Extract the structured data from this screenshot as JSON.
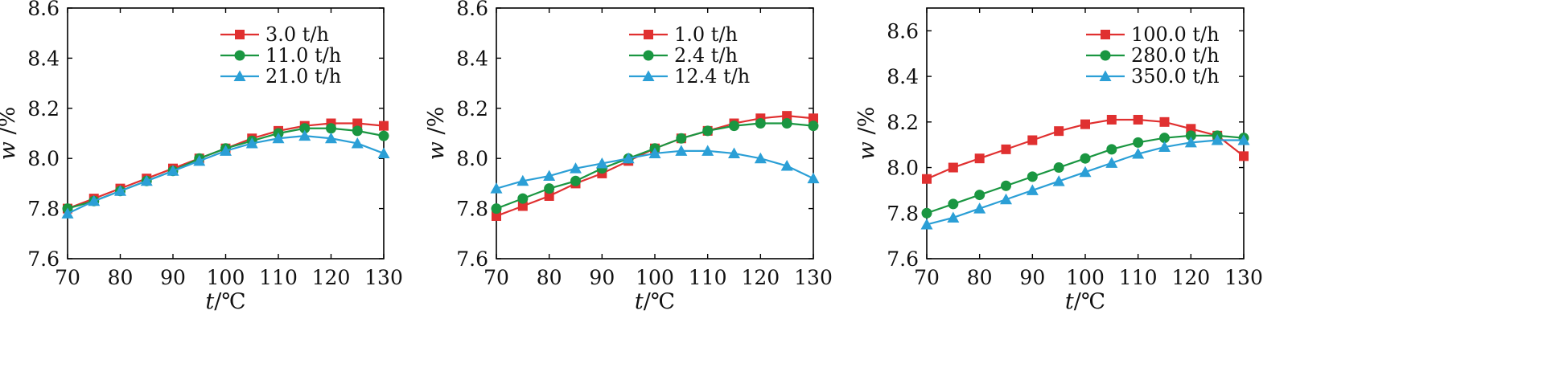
{
  "chart_data": [
    {
      "type": "line",
      "x": [
        70,
        75,
        80,
        85,
        90,
        95,
        100,
        105,
        110,
        115,
        120,
        125,
        130
      ],
      "xlabel": {
        "italic": "t",
        "unit": "/℃"
      },
      "ylabel": {
        "italic": "w",
        "unit": "/%"
      },
      "xlim": [
        70,
        130
      ],
      "ylim": [
        7.6,
        8.6
      ],
      "xticks": [
        "70",
        "80",
        "90",
        "100",
        "110",
        "120",
        "130"
      ],
      "yticks": [
        "7.6",
        "7.8",
        "8.0",
        "8.2",
        "8.4",
        "8.6"
      ],
      "grid": false,
      "legend": "top-center",
      "series": [
        {
          "name": "3.0 t/h",
          "color": "#e03030",
          "marker": "square",
          "values": [
            7.8,
            7.84,
            7.88,
            7.92,
            7.96,
            8.0,
            8.04,
            8.08,
            8.11,
            8.13,
            8.14,
            8.14,
            8.13
          ]
        },
        {
          "name": "11.0 t/h",
          "color": "#1a9641",
          "marker": "circle",
          "values": [
            7.8,
            7.83,
            7.87,
            7.91,
            7.95,
            8.0,
            8.04,
            8.07,
            8.1,
            8.12,
            8.12,
            8.11,
            8.09
          ]
        },
        {
          "name": "21.0 t/h",
          "color": "#2b9fd6",
          "marker": "triangle",
          "values": [
            7.78,
            7.83,
            7.87,
            7.91,
            7.95,
            7.99,
            8.03,
            8.06,
            8.08,
            8.09,
            8.08,
            8.06,
            8.02
          ]
        }
      ]
    },
    {
      "type": "line",
      "x": [
        70,
        75,
        80,
        85,
        90,
        95,
        100,
        105,
        110,
        115,
        120,
        125,
        130
      ],
      "xlabel": {
        "italic": "t",
        "unit": "/℃"
      },
      "ylabel": {
        "italic": "w",
        "unit": "/%"
      },
      "xlim": [
        70,
        130
      ],
      "ylim": [
        7.6,
        8.6
      ],
      "xticks": [
        "70",
        "80",
        "90",
        "100",
        "110",
        "120",
        "130"
      ],
      "yticks": [
        "7.6",
        "7.8",
        "8.0",
        "8.2",
        "8.4",
        "8.6"
      ],
      "grid": false,
      "legend": "top-center",
      "series": [
        {
          "name": "1.0 t/h",
          "color": "#e03030",
          "marker": "square",
          "values": [
            7.77,
            7.81,
            7.85,
            7.9,
            7.94,
            7.99,
            8.04,
            8.08,
            8.11,
            8.14,
            8.16,
            8.17,
            8.16
          ]
        },
        {
          "name": "2.4 t/h",
          "color": "#1a9641",
          "marker": "circle",
          "values": [
            7.8,
            7.84,
            7.88,
            7.91,
            7.96,
            8.0,
            8.04,
            8.08,
            8.11,
            8.13,
            8.14,
            8.14,
            8.13
          ]
        },
        {
          "name": "12.4 t/h",
          "color": "#2b9fd6",
          "marker": "triangle",
          "values": [
            7.88,
            7.91,
            7.93,
            7.96,
            7.98,
            8.0,
            8.02,
            8.03,
            8.03,
            8.02,
            8.0,
            7.97,
            7.92
          ]
        }
      ]
    },
    {
      "type": "line",
      "x": [
        70,
        75,
        80,
        85,
        90,
        95,
        100,
        105,
        110,
        115,
        120,
        125,
        130
      ],
      "xlabel": {
        "italic": "t",
        "unit": "/℃"
      },
      "ylabel": {
        "italic": "w",
        "unit": "/%"
      },
      "xlim": [
        70,
        130
      ],
      "ylim": [
        7.6,
        8.7
      ],
      "xticks": [
        "70",
        "80",
        "90",
        "100",
        "110",
        "120",
        "130"
      ],
      "yticks": [
        "7.6",
        "7.8",
        "8.0",
        "8.2",
        "8.4",
        "8.6"
      ],
      "grid": false,
      "legend": "top-center",
      "series": [
        {
          "name": "100.0 t/h",
          "color": "#e03030",
          "marker": "square",
          "values": [
            7.95,
            8.0,
            8.04,
            8.08,
            8.12,
            8.16,
            8.19,
            8.21,
            8.21,
            8.2,
            8.17,
            8.14,
            8.05
          ]
        },
        {
          "name": "280.0 t/h",
          "color": "#1a9641",
          "marker": "circle",
          "values": [
            7.8,
            7.84,
            7.88,
            7.92,
            7.96,
            8.0,
            8.04,
            8.08,
            8.11,
            8.13,
            8.14,
            8.14,
            8.13
          ]
        },
        {
          "name": "350.0 t/h",
          "color": "#2b9fd6",
          "marker": "triangle",
          "values": [
            7.75,
            7.78,
            7.82,
            7.86,
            7.9,
            7.94,
            7.98,
            8.02,
            8.06,
            8.09,
            8.11,
            8.12,
            8.12
          ]
        }
      ]
    }
  ]
}
